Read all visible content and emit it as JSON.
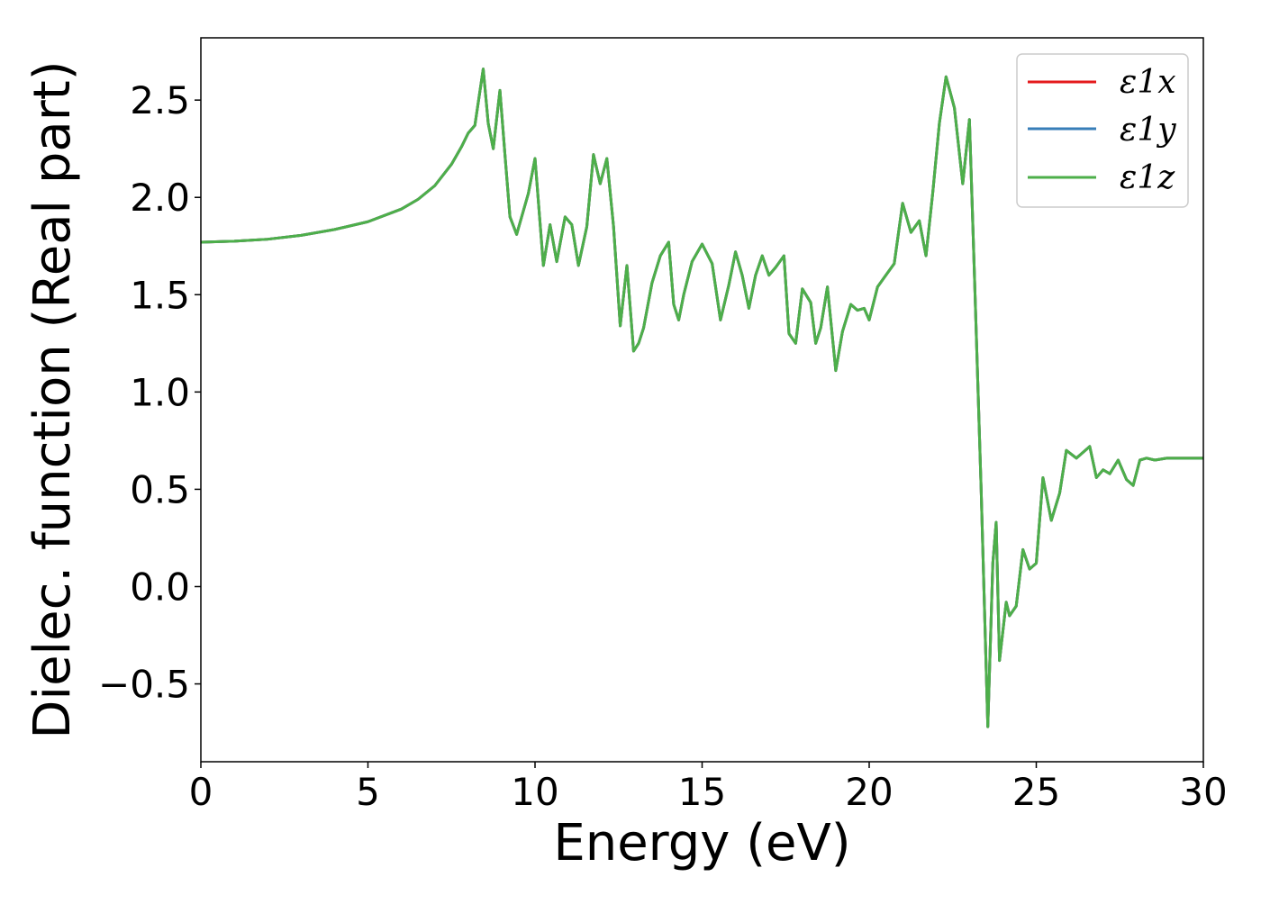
{
  "chart_data": {
    "type": "line",
    "title": "",
    "xlabel": "Energy (eV)",
    "ylabel": "Dielec. function (Real part)",
    "xlim": [
      0,
      30
    ],
    "ylim": [
      -0.9,
      2.82
    ],
    "xticks": [
      0,
      5,
      10,
      15,
      20,
      25,
      30
    ],
    "xtick_labels": [
      "0",
      "5",
      "10",
      "15",
      "20",
      "25",
      "30"
    ],
    "yticks": [
      -0.5,
      0.0,
      0.5,
      1.0,
      1.5,
      2.0,
      2.5
    ],
    "ytick_labels": [
      "−0.5",
      "0.0",
      "0.5",
      "1.0",
      "1.5",
      "2.0",
      "2.5"
    ],
    "grid": false,
    "legend_position": "top-right",
    "colors": {
      "x": "#e41a1c",
      "y": "#377eb8",
      "z": "#4daf4a"
    },
    "x": [
      0,
      1,
      2,
      3,
      4,
      5,
      6,
      6.5,
      7,
      7.5,
      7.8,
      8.0,
      8.2,
      8.45,
      8.6,
      8.75,
      8.95,
      9.1,
      9.25,
      9.45,
      9.8,
      10.0,
      10.25,
      10.45,
      10.65,
      10.9,
      11.1,
      11.3,
      11.55,
      11.75,
      11.95,
      12.15,
      12.35,
      12.55,
      12.75,
      12.95,
      13.1,
      13.25,
      13.5,
      13.75,
      14.0,
      14.15,
      14.3,
      14.45,
      14.7,
      15.0,
      15.3,
      15.55,
      15.8,
      16.0,
      16.2,
      16.4,
      16.6,
      16.8,
      17.0,
      17.2,
      17.45,
      17.6,
      17.8,
      18.0,
      18.25,
      18.4,
      18.55,
      18.75,
      19.0,
      19.2,
      19.45,
      19.65,
      19.85,
      20.0,
      20.25,
      20.5,
      20.75,
      21.0,
      21.25,
      21.5,
      21.7,
      21.9,
      22.1,
      22.3,
      22.55,
      22.8,
      23.0,
      23.15,
      23.35,
      23.55,
      23.7,
      23.8,
      23.9,
      24.1,
      24.2,
      24.4,
      24.6,
      24.8,
      25.0,
      25.2,
      25.45,
      25.7,
      25.9,
      26.2,
      26.6,
      26.8,
      27.0,
      27.2,
      27.45,
      27.7,
      27.9,
      28.1,
      28.3,
      28.55,
      28.9,
      29.2,
      29.5,
      29.8,
      30.0
    ],
    "series": [
      {
        "name": "ε1x",
        "values": [
          1.77,
          1.775,
          1.785,
          1.805,
          1.835,
          1.875,
          1.94,
          1.99,
          2.06,
          2.17,
          2.26,
          2.33,
          2.37,
          2.66,
          2.38,
          2.25,
          2.55,
          2.22,
          1.9,
          1.81,
          2.02,
          2.2,
          1.65,
          1.86,
          1.67,
          1.9,
          1.86,
          1.65,
          1.85,
          2.22,
          2.07,
          2.2,
          1.85,
          1.34,
          1.65,
          1.21,
          1.25,
          1.33,
          1.56,
          1.7,
          1.77,
          1.45,
          1.37,
          1.5,
          1.67,
          1.76,
          1.66,
          1.37,
          1.55,
          1.72,
          1.6,
          1.43,
          1.6,
          1.7,
          1.6,
          1.64,
          1.7,
          1.3,
          1.25,
          1.53,
          1.46,
          1.25,
          1.33,
          1.54,
          1.11,
          1.31,
          1.45,
          1.42,
          1.43,
          1.37,
          1.54,
          1.6,
          1.66,
          1.97,
          1.82,
          1.88,
          1.7,
          2.02,
          2.38,
          2.62,
          2.46,
          2.07,
          2.4,
          1.6,
          0.5,
          -0.72,
          0.12,
          0.33,
          -0.38,
          -0.08,
          -0.15,
          -0.1,
          0.19,
          0.09,
          0.12,
          0.56,
          0.34,
          0.48,
          0.7,
          0.66,
          0.72,
          0.56,
          0.6,
          0.58,
          0.65,
          0.55,
          0.52,
          0.65,
          0.66,
          0.65,
          0.66,
          0.66,
          0.66,
          0.66,
          0.66
        ]
      },
      {
        "name": "ε1y",
        "values": [
          1.77,
          1.775,
          1.785,
          1.805,
          1.835,
          1.875,
          1.94,
          1.99,
          2.06,
          2.17,
          2.26,
          2.33,
          2.37,
          2.66,
          2.38,
          2.25,
          2.55,
          2.22,
          1.9,
          1.81,
          2.02,
          2.2,
          1.65,
          1.86,
          1.67,
          1.9,
          1.86,
          1.65,
          1.85,
          2.22,
          2.07,
          2.2,
          1.85,
          1.34,
          1.65,
          1.21,
          1.25,
          1.33,
          1.56,
          1.7,
          1.77,
          1.45,
          1.37,
          1.5,
          1.67,
          1.76,
          1.66,
          1.37,
          1.55,
          1.72,
          1.6,
          1.43,
          1.6,
          1.7,
          1.6,
          1.64,
          1.7,
          1.3,
          1.25,
          1.53,
          1.46,
          1.25,
          1.33,
          1.54,
          1.11,
          1.31,
          1.45,
          1.42,
          1.43,
          1.37,
          1.54,
          1.6,
          1.66,
          1.97,
          1.82,
          1.88,
          1.7,
          2.02,
          2.38,
          2.62,
          2.46,
          2.07,
          2.4,
          1.6,
          0.5,
          -0.72,
          0.12,
          0.33,
          -0.38,
          -0.08,
          -0.15,
          -0.1,
          0.19,
          0.09,
          0.12,
          0.56,
          0.34,
          0.48,
          0.7,
          0.66,
          0.72,
          0.56,
          0.6,
          0.58,
          0.65,
          0.55,
          0.52,
          0.65,
          0.66,
          0.65,
          0.66,
          0.66,
          0.66,
          0.66,
          0.66
        ]
      },
      {
        "name": "ε1z",
        "values": [
          1.77,
          1.775,
          1.785,
          1.805,
          1.835,
          1.875,
          1.94,
          1.99,
          2.06,
          2.17,
          2.26,
          2.33,
          2.37,
          2.66,
          2.38,
          2.25,
          2.55,
          2.22,
          1.9,
          1.81,
          2.02,
          2.2,
          1.65,
          1.86,
          1.67,
          1.9,
          1.86,
          1.65,
          1.85,
          2.22,
          2.07,
          2.2,
          1.85,
          1.34,
          1.65,
          1.21,
          1.25,
          1.33,
          1.56,
          1.7,
          1.77,
          1.45,
          1.37,
          1.5,
          1.67,
          1.76,
          1.66,
          1.37,
          1.55,
          1.72,
          1.6,
          1.43,
          1.6,
          1.7,
          1.6,
          1.64,
          1.7,
          1.3,
          1.25,
          1.53,
          1.46,
          1.25,
          1.33,
          1.54,
          1.11,
          1.31,
          1.45,
          1.42,
          1.43,
          1.37,
          1.54,
          1.6,
          1.66,
          1.97,
          1.82,
          1.88,
          1.7,
          2.02,
          2.38,
          2.62,
          2.46,
          2.07,
          2.4,
          1.6,
          0.5,
          -0.72,
          0.12,
          0.33,
          -0.38,
          -0.08,
          -0.15,
          -0.1,
          0.19,
          0.09,
          0.12,
          0.56,
          0.34,
          0.48,
          0.7,
          0.66,
          0.72,
          0.56,
          0.6,
          0.58,
          0.65,
          0.55,
          0.52,
          0.65,
          0.66,
          0.65,
          0.66,
          0.66,
          0.66,
          0.66,
          0.66
        ]
      }
    ]
  }
}
